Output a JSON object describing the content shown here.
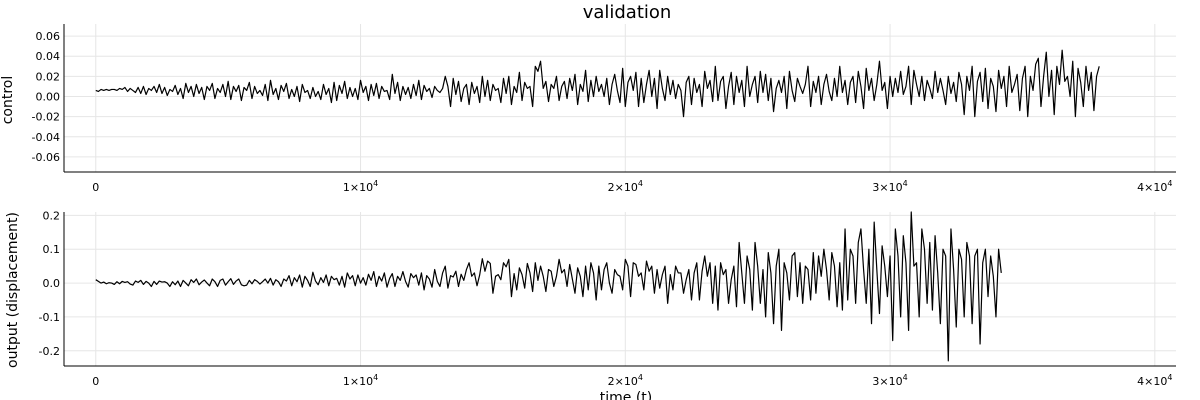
{
  "chart_data": [
    {
      "type": "line",
      "title": "validation",
      "xlabel": "",
      "ylabel": "control",
      "xlim": [
        -1200,
        40800
      ],
      "ylim": [
        -0.075,
        0.072
      ],
      "grid": true,
      "x_ticks": [
        0,
        10000,
        20000,
        30000,
        40000
      ],
      "x_tick_labels": [
        {
          "base": "0",
          "exp": ""
        },
        {
          "base": "1×10",
          "exp": "4"
        },
        {
          "base": "2×10",
          "exp": "4"
        },
        {
          "base": "3×10",
          "exp": "4"
        },
        {
          "base": "4×10",
          "exp": "4"
        }
      ],
      "y_ticks": [
        -0.06,
        -0.04,
        -0.02,
        0.0,
        0.02,
        0.04,
        0.06
      ],
      "y_tick_labels": [
        "-0.06",
        "-0.04",
        "-0.02",
        "0.00",
        "0.02",
        "0.04",
        "0.06"
      ],
      "series": [
        {
          "color": "#000000",
          "x_start": 0,
          "x_step": 100,
          "values": [
            0.006,
            0.005,
            0.007,
            0.006,
            0.007,
            0.006,
            0.007,
            0.007,
            0.006,
            0.008,
            0.007,
            0.009,
            0.005,
            0.008,
            0.006,
            0.004,
            0.009,
            0.003,
            0.01,
            0.002,
            0.008,
            0.006,
            0.01,
            0.004,
            0.012,
            0.003,
            0.009,
            0.001,
            0.007,
            0.005,
            0.011,
            0.002,
            0.008,
            -0.002,
            0.013,
            0.004,
            0.01,
            0.0,
            0.012,
            0.003,
            0.009,
            -0.003,
            0.01,
            0.006,
            0.013,
            -0.002,
            0.008,
            0.004,
            0.012,
            0.0,
            0.015,
            -0.003,
            0.01,
            0.005,
            0.011,
            -0.004,
            0.009,
            0.006,
            0.014,
            -0.002,
            0.01,
            0.003,
            0.006,
            0.001,
            0.012,
            -0.004,
            0.016,
            0.002,
            0.008,
            -0.003,
            0.011,
            0.005,
            0.013,
            -0.002,
            0.007,
            0.0,
            0.01,
            -0.005,
            0.012,
            0.004,
            0.006,
            -0.002,
            0.009,
            0.0,
            0.005,
            -0.003,
            0.012,
            0.002,
            0.008,
            -0.006,
            0.014,
            -0.004,
            0.011,
            0.003,
            0.015,
            -0.002,
            0.009,
            0.0,
            0.008,
            -0.003,
            0.016,
            0.004,
            0.01,
            -0.004,
            0.012,
            0.001,
            0.013,
            -0.002,
            0.01,
            0.005,
            0.006,
            -0.003,
            0.022,
            0.003,
            0.014,
            -0.004,
            0.01,
            0.002,
            0.009,
            -0.002,
            0.012,
            0.001,
            0.016,
            -0.003,
            0.011,
            0.005,
            0.008,
            -0.001,
            0.01,
            0.006,
            0.004,
            0.008,
            0.02,
            0.01,
            -0.01,
            0.018,
            0.002,
            0.015,
            -0.005,
            0.008,
            0.012,
            -0.008,
            0.014,
            0.003,
            0.01,
            -0.006,
            0.02,
            0.0,
            0.016,
            -0.004,
            0.012,
            0.006,
            0.008,
            -0.006,
            0.018,
            0.003,
            0.02,
            -0.008,
            0.01,
            0.004,
            0.024,
            -0.004,
            0.014,
            0.008,
            0.01,
            -0.01,
            0.03,
            0.025,
            0.035,
            0.008,
            0.015,
            -0.005,
            0.012,
            0.008,
            0.02,
            -0.004,
            0.01,
            0.015,
            -0.002,
            0.018,
            0.006,
            0.022,
            -0.008,
            0.012,
            0.005,
            0.026,
            -0.005,
            0.016,
            0.0,
            0.02,
            0.005,
            0.012,
            0.0,
            0.018,
            -0.008,
            0.012,
            0.022,
            0.006,
            -0.006,
            0.028,
            -0.01,
            0.014,
            0.02,
            0.006,
            0.024,
            -0.01,
            0.018,
            -0.006,
            0.012,
            0.026,
            0.0,
            0.018,
            -0.012,
            0.026,
            0.008,
            -0.004,
            0.02,
            0.002,
            0.016,
            -0.002,
            0.012,
            0.006,
            -0.02,
            0.014,
            0.02,
            -0.008,
            0.018,
            0.004,
            0.012,
            -0.01,
            0.025,
            0.008,
            0.016,
            -0.005,
            0.03,
            -0.004,
            0.015,
            0.02,
            -0.012,
            0.01,
            0.024,
            -0.008,
            0.02,
            0.004,
            0.016,
            -0.01,
            0.03,
            0.0,
            0.012,
            0.02,
            -0.006,
            0.025,
            0.004,
            0.022,
            -0.004,
            0.018,
            -0.015,
            0.008,
            0.016,
            0.004,
            0.02,
            -0.012,
            0.025,
            0.006,
            -0.005,
            0.018,
            0.01,
            0.003,
            0.012,
            0.03,
            -0.01,
            0.015,
            0.004,
            0.02,
            -0.008,
            0.012,
            0.022,
            0.005,
            -0.004,
            0.018,
            0.0,
            0.03,
            0.004,
            0.016,
            -0.008,
            0.014,
            0.02,
            -0.006,
            0.025,
            0.01,
            -0.012,
            0.028,
            0.006,
            0.018,
            -0.004,
            0.012,
            0.035,
            0.006,
            0.014,
            -0.012,
            0.02,
            0.0,
            0.018,
            0.004,
            0.025,
            0.002,
            0.01,
            0.03,
            -0.008,
            0.026,
            0.012,
            0.0,
            0.02,
            -0.004,
            0.016,
            0.008,
            -0.002,
            0.025,
            0.004,
            0.018,
            0.006,
            -0.008,
            0.02,
            0.003,
            0.014,
            -0.005,
            0.024,
            0.012,
            -0.018,
            0.02,
            0.006,
            0.03,
            -0.02,
            0.015,
            0.024,
            -0.005,
            0.028,
            -0.012,
            0.018,
            0.01,
            -0.015,
            0.026,
            0.008,
            0.02,
            -0.01,
            0.03,
            0.004,
            0.012,
            0.022,
            -0.014,
            0.018,
            0.03,
            -0.02,
            0.02,
            0.006,
            0.032,
            0.038,
            -0.01,
            0.02,
            0.044,
            0.0,
            0.026,
            -0.018,
            0.03,
            0.012,
            0.046,
            0.015,
            0.02,
            0.0,
            0.035,
            -0.02,
            0.028,
            0.014,
            -0.01,
            0.03,
            0.006,
            0.024,
            -0.014,
            0.02,
            0.03
          ]
        }
      ]
    },
    {
      "type": "line",
      "title": "",
      "xlabel": "time (t)",
      "ylabel": "output (displacement)",
      "xlim": [
        -1200,
        40800
      ],
      "ylim": [
        -0.245,
        0.21
      ],
      "grid": true,
      "x_ticks": [
        0,
        10000,
        20000,
        30000,
        40000
      ],
      "x_tick_labels": [
        {
          "base": "0",
          "exp": ""
        },
        {
          "base": "1×10",
          "exp": "4"
        },
        {
          "base": "2×10",
          "exp": "4"
        },
        {
          "base": "3×10",
          "exp": "4"
        },
        {
          "base": "4×10",
          "exp": "4"
        }
      ],
      "y_ticks": [
        -0.2,
        -0.1,
        0.0,
        0.1,
        0.2
      ],
      "y_tick_labels": [
        "-0.2",
        "-0.1",
        "0.0",
        "0.1",
        "0.2"
      ],
      "series": [
        {
          "color": "#000000",
          "x_start": 0,
          "x_step": 100,
          "values": [
            0.01,
            0.005,
            0.0,
            0.003,
            -0.002,
            0.001,
            0.0,
            -0.004,
            0.004,
            -0.002,
            0.005,
            0.002,
            0.004,
            -0.003,
            -0.006,
            0.006,
            0.002,
            0.008,
            -0.004,
            0.005,
            0.0,
            -0.01,
            0.005,
            -0.004,
            0.006,
            0.003,
            0.004,
            0.0,
            -0.01,
            0.004,
            -0.005,
            0.006,
            -0.01,
            0.008,
            0.0,
            -0.008,
            0.01,
            0.002,
            0.012,
            -0.005,
            0.003,
            0.009,
            0.0,
            -0.008,
            0.012,
            0.004,
            -0.01,
            0.008,
            0.012,
            -0.006,
            0.004,
            0.013,
            -0.004,
            0.006,
            0.012,
            -0.005,
            -0.008,
            -0.006,
            0.008,
            -0.002,
            0.01,
            0.005,
            -0.003,
            0.004,
            0.012,
            0.0,
            0.014,
            -0.006,
            0.01,
            0.004,
            -0.01,
            0.012,
            0.006,
            0.022,
            -0.008,
            0.016,
            0.004,
            0.024,
            -0.012,
            0.02,
            0.008,
            -0.01,
            0.032,
            0.006,
            -0.005,
            0.016,
            0.002,
            0.024,
            -0.008,
            0.02,
            0.01,
            0.014,
            -0.006,
            0.02,
            -0.012,
            0.03,
            0.012,
            0.022,
            -0.008,
            0.024,
            0.0,
            0.016,
            -0.006,
            0.026,
            0.008,
            0.034,
            -0.01,
            0.02,
            0.006,
            0.03,
            -0.012,
            0.014,
            0.028,
            -0.01,
            0.02,
            0.008,
            0.034,
            0.005,
            -0.012,
            0.028,
            0.016,
            0.024,
            -0.006,
            0.03,
            -0.02,
            0.022,
            0.012,
            -0.012,
            0.04,
            0.005,
            -0.01,
            0.03,
            0.05,
            -0.015,
            0.022,
            0.018,
            0.035,
            -0.01,
            0.026,
            0.008,
            0.04,
            0.06,
            0.02,
            0.03,
            -0.008,
            0.024,
            0.072,
            0.035,
            0.065,
            0.058,
            -0.03,
            0.02,
            0.025,
            0.01,
            0.06,
            0.048,
            0.07,
            -0.04,
            0.028,
            -0.02,
            0.045,
            0.025,
            -0.015,
            0.058,
            0.03,
            -0.025,
            0.06,
            0.008,
            0.05,
            0.02,
            -0.025,
            0.04,
            0.035,
            -0.01,
            0.02,
            0.07,
            0.03,
            0.04,
            -0.01,
            0.055,
            0.012,
            -0.03,
            0.045,
            0.02,
            -0.04,
            0.05,
            -0.02,
            0.06,
            0.03,
            -0.05,
            0.05,
            -0.02,
            0.04,
            0.06,
            0.0,
            -0.03,
            0.04,
            0.025,
            0.02,
            -0.02,
            0.07,
            0.05,
            -0.04,
            0.06,
            0.055,
            0.02,
            0.03,
            -0.02,
            0.065,
            0.035,
            0.05,
            -0.03,
            0.04,
            -0.015,
            0.025,
            0.05,
            -0.06,
            0.025,
            -0.02,
            0.05,
            0.03,
            0.03,
            -0.03,
            0.01,
            0.04,
            -0.05,
            0.03,
            0.06,
            -0.05,
            0.035,
            0.08,
            0.02,
            0.06,
            -0.06,
            0.05,
            -0.08,
            0.06,
            0.025,
            0.04,
            -0.06,
            0.01,
            0.05,
            -0.07,
            0.12,
            0.03,
            -0.06,
            0.08,
            0.04,
            -0.08,
            0.12,
            0.05,
            -0.06,
            0.04,
            -0.1,
            0.09,
            0.03,
            -0.12,
            0.05,
            0.1,
            -0.14,
            0.06,
            0.03,
            -0.05,
            0.08,
            0.09,
            -0.04,
            0.06,
            -0.06,
            0.05,
            0.04,
            -0.05,
            0.09,
            -0.03,
            0.08,
            0.02,
            0.1,
            0.04,
            -0.05,
            0.09,
            0.05,
            -0.07,
            0.06,
            -0.08,
            0.16,
            -0.05,
            0.1,
            0.08,
            -0.06,
            0.12,
            0.16,
            0.04,
            -0.06,
            0.1,
            -0.12,
            0.18,
            0.04,
            -0.09,
            0.11,
            0.05,
            -0.04,
            0.08,
            -0.17,
            0.16,
            0.08,
            -0.1,
            0.14,
            0.06,
            -0.14,
            0.21,
            0.05,
            0.06,
            -0.1,
            0.16,
            0.1,
            -0.06,
            0.12,
            -0.08,
            0.14,
            0.03,
            -0.12,
            0.1,
            0.08,
            -0.23,
            0.16,
            0.04,
            -0.13,
            0.1,
            0.07,
            -0.1,
            0.12,
            0.08,
            -0.12,
            0.08,
            0.1,
            -0.18,
            0.06,
            0.1,
            -0.04,
            0.08,
            0.02,
            -0.1,
            0.1,
            0.03
          ]
        }
      ]
    }
  ]
}
